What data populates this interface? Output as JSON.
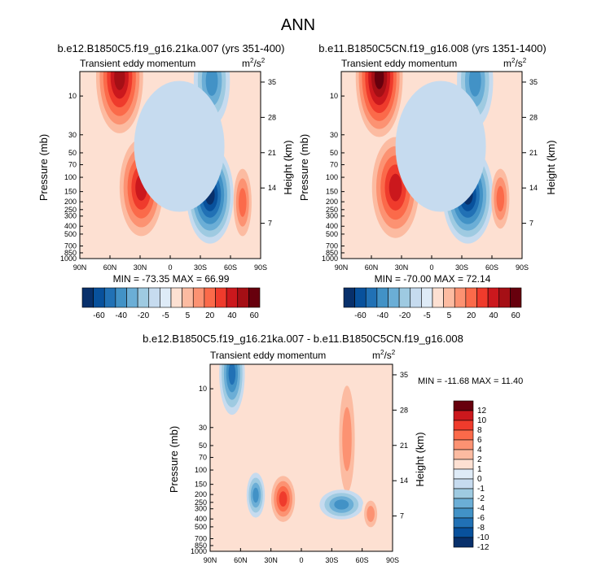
{
  "title": "ANN",
  "units": {
    "base": "m",
    "sup1": "2",
    "slash": "/s",
    "sup2": "2"
  },
  "colors": {
    "panel_ab": [
      "#08306b",
      "#08519c",
      "#2171b5",
      "#4292c6",
      "#6baed6",
      "#9ecae1",
      "#c6dbef",
      "#deebf7",
      "#fde0d2",
      "#fcbba1",
      "#fc9272",
      "#fb6a4a",
      "#ef3b2c",
      "#cb181d",
      "#a50f15",
      "#67000d"
    ],
    "panel_diff": [
      "#08306b",
      "#08519c",
      "#2171b5",
      "#4292c6",
      "#6baed6",
      "#9ecae1",
      "#c6dbef",
      "#deebf7",
      "#fde0d2",
      "#fcbba1",
      "#fc9272",
      "#fb6a4a",
      "#ef3b2c",
      "#cb181d",
      "#67000d"
    ]
  },
  "chart_data": [
    {
      "type": "heatmap",
      "title": "b.e12.B1850C5.f19_g16.21ka.007 (yrs 351-400)",
      "subtitle": "Transient eddy momentum",
      "xlabel": "",
      "ylabel": "Pressure (mb)",
      "y2label": "Height (km)",
      "x_ticks": [
        "90N",
        "60N",
        "30N",
        "0",
        "30S",
        "60S",
        "90S"
      ],
      "y_ticks": [
        "10",
        "30",
        "50",
        "70",
        "100",
        "150",
        "200",
        "250",
        "300",
        "400",
        "500",
        "700",
        "850",
        "1000"
      ],
      "y2_ticks": [
        "35",
        "28",
        "21",
        "14",
        "7"
      ],
      "stats": "MIN = -73.35  MAX = 66.99",
      "colorbar_labels": [
        "-60",
        "-40",
        "-20",
        "-5",
        "5",
        "20",
        "40",
        "60"
      ],
      "min": -73.35,
      "max": 66.99
    },
    {
      "type": "heatmap",
      "title": "b.e11.B1850C5CN.f19_g16.008 (yrs 1351-1400)",
      "subtitle": "Transient eddy momentum",
      "xlabel": "",
      "ylabel": "Pressure (mb)",
      "y2label": "Height (km)",
      "x_ticks": [
        "90N",
        "60N",
        "30N",
        "0",
        "30S",
        "60S",
        "90S"
      ],
      "y_ticks": [
        "10",
        "30",
        "50",
        "70",
        "100",
        "150",
        "200",
        "250",
        "300",
        "400",
        "500",
        "700",
        "850",
        "1000"
      ],
      "y2_ticks": [
        "35",
        "28",
        "21",
        "14",
        "7"
      ],
      "stats": "MIN = -70.00  MAX = 72.14",
      "colorbar_labels": [
        "-60",
        "-40",
        "-20",
        "-5",
        "5",
        "20",
        "40",
        "60"
      ],
      "min": -70.0,
      "max": 72.14
    },
    {
      "type": "heatmap",
      "title": "b.e12.B1850C5.f19_g16.21ka.007 - b.e11.B1850C5CN.f19_g16.008",
      "subtitle": "Transient eddy momentum",
      "xlabel": "",
      "ylabel": "Pressure (mb)",
      "y2label": "Height (km)",
      "x_ticks": [
        "90N",
        "60N",
        "30N",
        "0",
        "30S",
        "60S",
        "90S"
      ],
      "y_ticks": [
        "10",
        "30",
        "50",
        "70",
        "100",
        "150",
        "200",
        "250",
        "300",
        "400",
        "500",
        "700",
        "850",
        "1000"
      ],
      "y2_ticks": [
        "35",
        "28",
        "21",
        "14",
        "7"
      ],
      "stats": "MIN = -11.68  MAX = 11.40",
      "colorbar_labels": [
        "12",
        "10",
        "8",
        "6",
        "4",
        "2",
        "1",
        "0",
        "-1",
        "-2",
        "-4",
        "-6",
        "-8",
        "-10",
        "-12"
      ],
      "min": -11.68,
      "max": 11.4
    }
  ]
}
